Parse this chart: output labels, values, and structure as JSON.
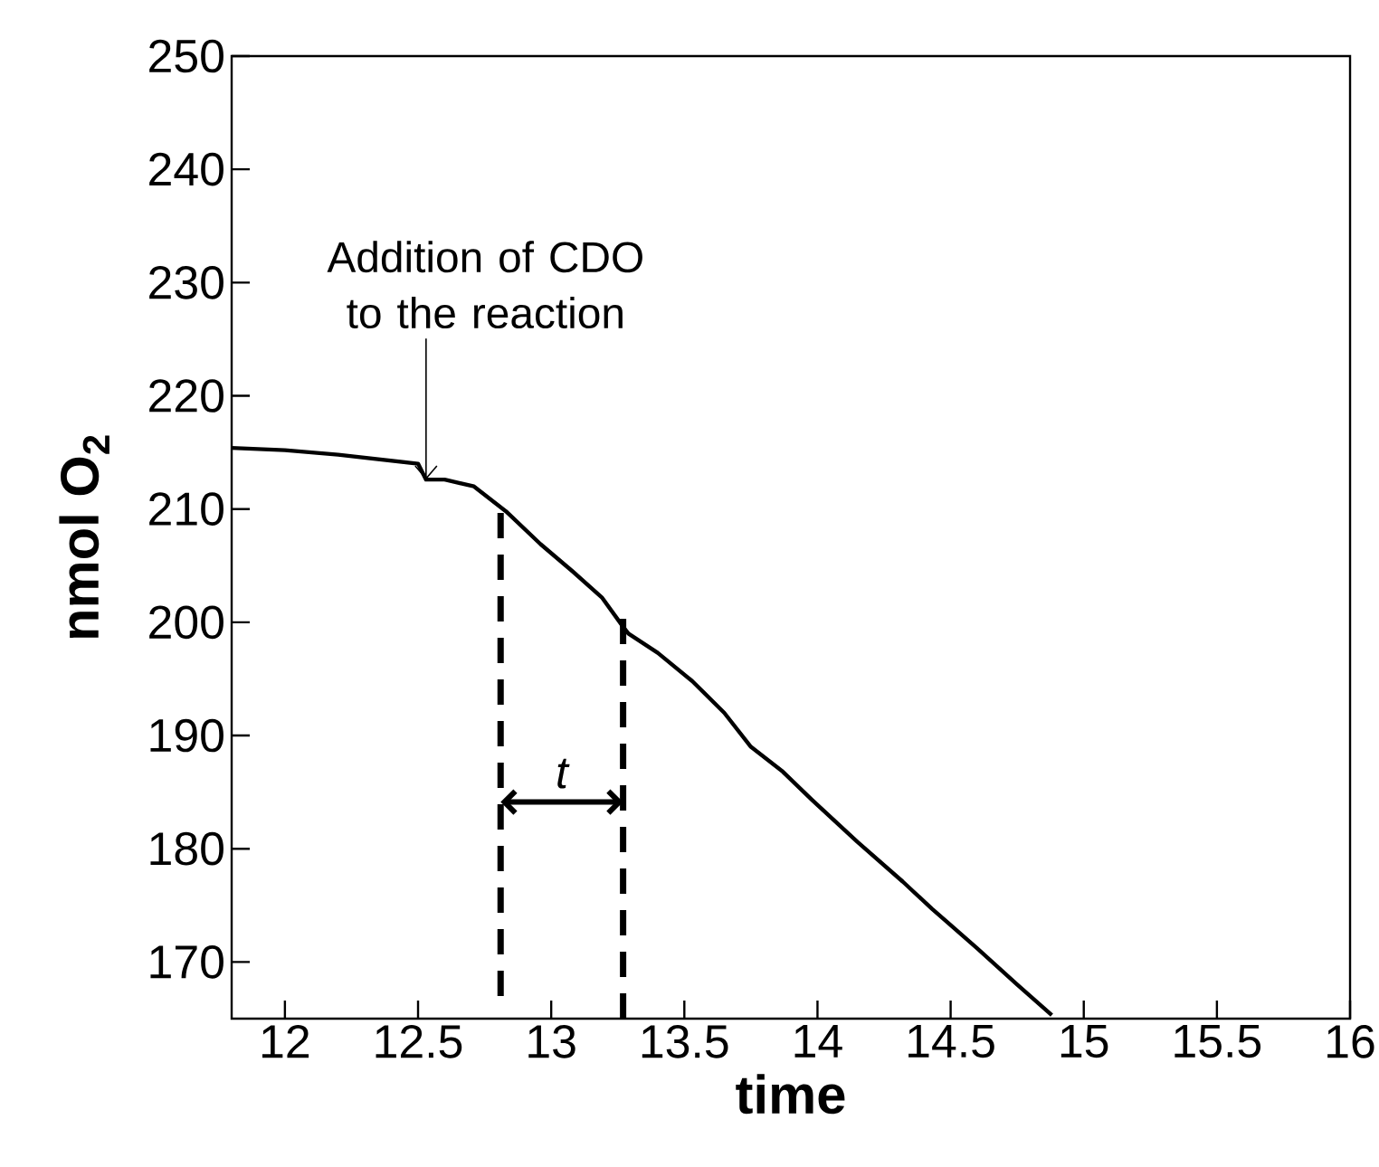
{
  "chart_data": {
    "type": "line",
    "xlabel": "time",
    "ylabel": "nmol O$_{2}$",
    "xlim": [
      11.8,
      16
    ],
    "ylim": [
      165,
      250
    ],
    "xticks": [
      12,
      12.5,
      13,
      13.5,
      14,
      14.5,
      15,
      15.5,
      16
    ],
    "yticks": [
      170,
      180,
      190,
      200,
      210,
      220,
      230,
      240,
      250
    ],
    "series": [
      {
        "color": "#000000",
        "x": [
          11.8,
          12.0,
          12.2,
          12.35,
          12.5,
          12.53,
          12.6,
          12.71,
          12.83,
          12.96,
          13.08,
          13.19,
          13.27,
          13.29,
          13.4,
          13.53,
          13.65,
          13.75,
          13.87,
          13.98,
          14.15,
          14.32,
          14.43,
          14.6,
          14.75,
          14.88
        ],
        "values": [
          215.4,
          215.2,
          214.8,
          214.4,
          214.0,
          212.6,
          212.6,
          212.0,
          209.8,
          206.9,
          204.5,
          202.2,
          199.6,
          199.0,
          197.3,
          194.8,
          192.0,
          189.0,
          186.8,
          184.3,
          180.6,
          177.1,
          174.7,
          171.2,
          168.0,
          165.3
        ]
      },
      {
        "color": "#000000",
        "line_style": "dashed",
        "x": [
          12.81,
          12.81
        ],
        "values": [
          167,
          210
        ]
      },
      {
        "color": "#000000",
        "line_style": "dashed",
        "x": [
          13.27,
          13.27
        ],
        "values": [
          165,
          201
        ]
      }
    ],
    "annotations": [
      {
        "text": "Addition of CDO to the reaction",
        "x": 12.53,
        "y": 212.6
      },
      "t"
    ]
  }
}
